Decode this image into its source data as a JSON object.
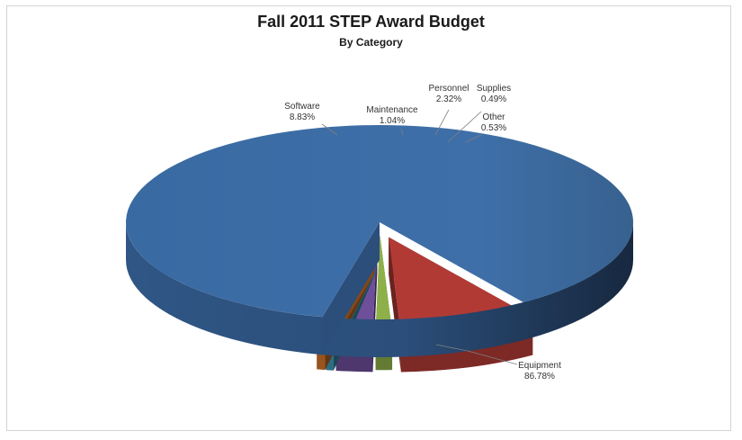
{
  "chart_data": {
    "type": "pie",
    "title": "Fall 2011 STEP Award Budget",
    "subtitle": "By Category",
    "slices": [
      {
        "name": "Equipment",
        "value": 86.78,
        "label": "86.78%",
        "color": "#3f6ea6"
      },
      {
        "name": "Software",
        "value": 8.83,
        "label": "8.83%",
        "color": "#b23a35"
      },
      {
        "name": "Maintenance",
        "value": 1.04,
        "label": "1.04%",
        "color": "#8db049"
      },
      {
        "name": "Personnel",
        "value": 2.32,
        "label": "2.32%",
        "color": "#6e4f9a"
      },
      {
        "name": "Supplies",
        "value": 0.49,
        "label": "0.49%",
        "color": "#3d9bbd"
      },
      {
        "name": "Other",
        "value": 0.53,
        "label": "0.53%",
        "color": "#d9782b"
      }
    ]
  }
}
